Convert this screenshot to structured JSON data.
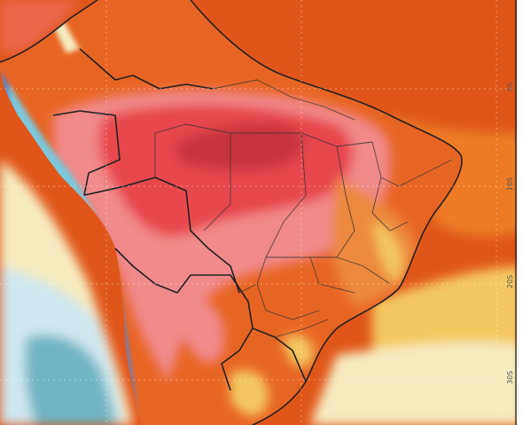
{
  "map": {
    "graticule_labels": [
      "0S",
      "10S",
      "20S",
      "30S"
    ],
    "colors": {
      "ocean_warm": "#e0561a",
      "ocean_orange": "#ec7a28",
      "ocean_yellow": "#f4c860",
      "ocean_cream": "#f6ecc0",
      "ocean_pale_blue": "#cfe6ee",
      "ocean_teal": "#6fb6c2",
      "land_orange": "#e76524",
      "land_red": "#e8464c",
      "land_pink": "#f08a8c",
      "land_dark_red": "#c83240",
      "andes_blue": "#5b82c4",
      "andes_cyan": "#7cc8dc",
      "border": "#222222"
    }
  }
}
